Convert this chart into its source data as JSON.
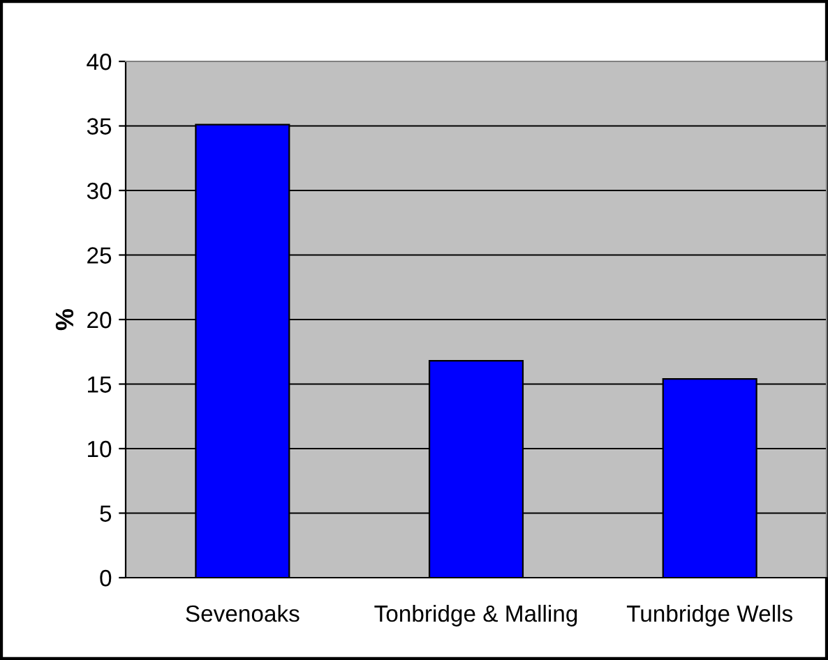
{
  "chart_data": {
    "type": "bar",
    "ylabel": "%",
    "categories": [
      "Sevenoaks",
      "Tonbridge & Malling",
      "Tunbridge Wells"
    ],
    "values": [
      35.1,
      16.8,
      15.4
    ],
    "color": "#0000ff",
    "ylim": [
      0,
      40
    ],
    "yticks": [
      0,
      5,
      10,
      15,
      20,
      25,
      30,
      35,
      40
    ],
    "grid": "y"
  }
}
